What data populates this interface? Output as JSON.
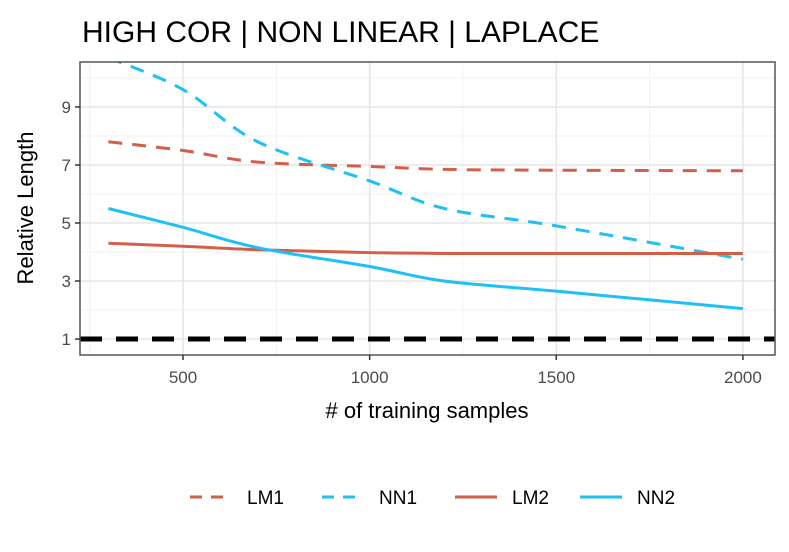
{
  "chart_data": {
    "type": "line",
    "title": "HIGH COR | NON LINEAR | LAPLACE",
    "xlabel": "# of training samples",
    "ylabel": "Relative Length",
    "xlim": [
      224,
      2086
    ],
    "ylim": [
      0.45,
      10.55
    ],
    "xticks": [
      500,
      1000,
      1500,
      2000
    ],
    "yticks": [
      1,
      3,
      5,
      7,
      9
    ],
    "grid": true,
    "legend_position": "bottom",
    "reference_line": {
      "y": 1,
      "color": "#000000",
      "style": "dashed"
    },
    "x": [
      300,
      500,
      700,
      1000,
      1200,
      1500,
      2000
    ],
    "series": [
      {
        "name": "LM1",
        "color": "#d45f49",
        "style": "dashed",
        "values": [
          7.8,
          7.5,
          7.1,
          6.95,
          6.85,
          6.82,
          6.8
        ]
      },
      {
        "name": "NN1",
        "color": "#1ec0f5",
        "style": "dashed",
        "values": [
          10.7,
          9.6,
          7.8,
          6.45,
          5.5,
          4.9,
          3.75
        ]
      },
      {
        "name": "LM2",
        "color": "#d45f49",
        "style": "solid",
        "values": [
          4.3,
          4.2,
          4.08,
          3.98,
          3.95,
          3.95,
          3.95
        ]
      },
      {
        "name": "NN2",
        "color": "#1ec0f5",
        "style": "solid",
        "values": [
          5.5,
          4.85,
          4.15,
          3.5,
          3.0,
          2.65,
          2.05
        ]
      }
    ]
  }
}
